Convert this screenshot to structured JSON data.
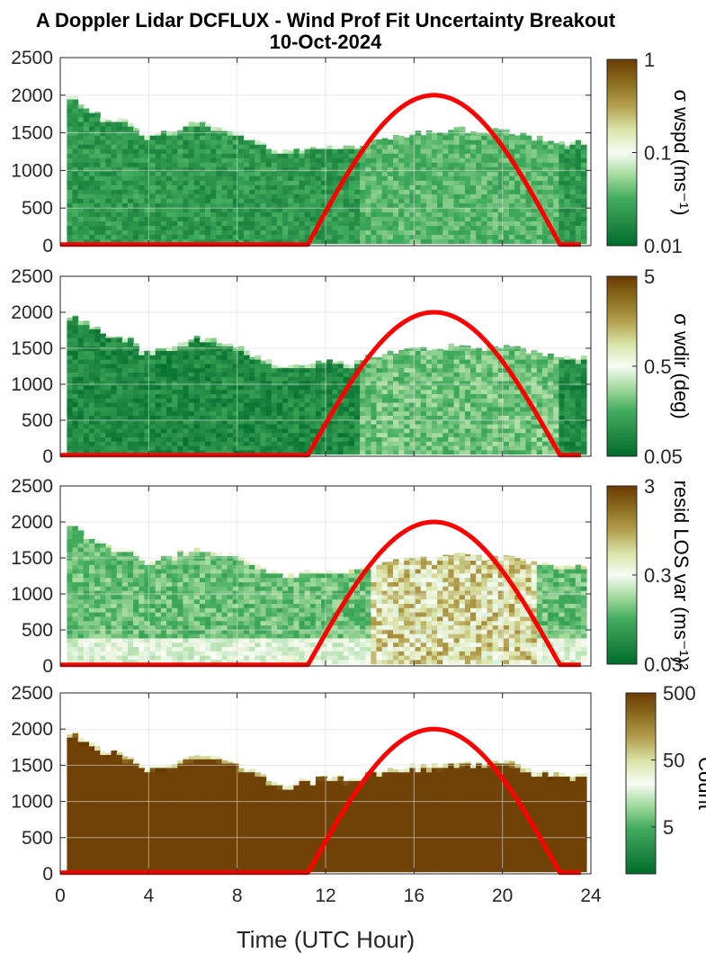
{
  "title": {
    "line1": "A Doppler Lidar DCFLUX - Wind Prof Fit Uncertainty Breakout",
    "line2": "10-Oct-2024"
  },
  "x_axis_label": "Time (UTC Hour)",
  "colors": {
    "sun_curve": "#ff0000",
    "grid": "#dcdcdc",
    "colormap": [
      "#006d2c",
      "#238b45",
      "#41ab5d",
      "#a1d99b",
      "#f7fcf5",
      "#d9e3a6",
      "#b3a04f",
      "#8c6d1f",
      "#6b3a03"
    ]
  },
  "chart_data": [
    {
      "type": "heatmap",
      "panel": 1,
      "x_ticks": [
        "0",
        "4",
        "8",
        "12",
        "16",
        "20",
        "24"
      ],
      "xlim": [
        0,
        24
      ],
      "y_ticks": [
        "0",
        "500",
        "1000",
        "1500",
        "2000",
        "2500"
      ],
      "ylim": [
        0,
        2500
      ],
      "grid": true,
      "colorbar": {
        "label": "σ wspd (ms⁻¹)",
        "ticks": [
          "0.01",
          "0.1",
          "1"
        ],
        "range": [
          0.01,
          1
        ],
        "scale": "log"
      },
      "top_height": [
        [
          0,
          1900
        ],
        [
          0.5,
          2000
        ],
        [
          1,
          1850
        ],
        [
          2,
          1700
        ],
        [
          3,
          1650
        ],
        [
          3.5,
          1500
        ],
        [
          4,
          1450
        ],
        [
          5,
          1550
        ],
        [
          6,
          1650
        ],
        [
          7,
          1600
        ],
        [
          8,
          1500
        ],
        [
          9,
          1350
        ],
        [
          10,
          1250
        ],
        [
          11,
          1300
        ],
        [
          12,
          1350
        ],
        [
          13,
          1300
        ],
        [
          14,
          1400
        ],
        [
          15,
          1450
        ],
        [
          16,
          1500
        ],
        [
          17,
          1500
        ],
        [
          18,
          1550
        ],
        [
          19,
          1500
        ],
        [
          20,
          1550
        ],
        [
          21,
          1450
        ],
        [
          22,
          1400
        ],
        [
          23,
          1350
        ],
        [
          23.5,
          1400
        ]
      ],
      "field_level": 0.18,
      "sun_curve": {
        "rise_hour": 11.2,
        "peak_hour": 17.0,
        "set_hour": 22.6,
        "peak_value": 2000,
        "base_value": 15
      }
    },
    {
      "type": "heatmap",
      "panel": 2,
      "x_ticks": [
        "0",
        "4",
        "8",
        "12",
        "16",
        "20",
        "24"
      ],
      "xlim": [
        0,
        24
      ],
      "y_ticks": [
        "0",
        "500",
        "1000",
        "1500",
        "2000",
        "2500"
      ],
      "ylim": [
        0,
        2500
      ],
      "grid": true,
      "colorbar": {
        "label": "σ wdir (deg)",
        "ticks": [
          "0.05",
          "0.5",
          "5"
        ],
        "range": [
          0.05,
          5
        ],
        "scale": "log"
      },
      "top_height": [
        [
          0,
          1900
        ],
        [
          0.5,
          2000
        ],
        [
          1,
          1850
        ],
        [
          2,
          1700
        ],
        [
          3,
          1650
        ],
        [
          3.5,
          1500
        ],
        [
          4,
          1450
        ],
        [
          5,
          1550
        ],
        [
          6,
          1650
        ],
        [
          7,
          1600
        ],
        [
          8,
          1500
        ],
        [
          9,
          1350
        ],
        [
          10,
          1250
        ],
        [
          11,
          1300
        ],
        [
          12,
          1350
        ],
        [
          13,
          1300
        ],
        [
          14,
          1400
        ],
        [
          15,
          1450
        ],
        [
          16,
          1500
        ],
        [
          17,
          1500
        ],
        [
          18,
          1550
        ],
        [
          19,
          1500
        ],
        [
          20,
          1550
        ],
        [
          21,
          1450
        ],
        [
          22,
          1400
        ],
        [
          23,
          1350
        ],
        [
          23.5,
          1400
        ]
      ],
      "field_level": 0.12,
      "sun_curve": {
        "rise_hour": 11.2,
        "peak_hour": 17.0,
        "set_hour": 22.6,
        "peak_value": 2000,
        "base_value": 15
      }
    },
    {
      "type": "heatmap",
      "panel": 3,
      "x_ticks": [
        "0",
        "4",
        "8",
        "12",
        "16",
        "20",
        "24"
      ],
      "xlim": [
        0,
        24
      ],
      "y_ticks": [
        "0",
        "500",
        "1000",
        "1500",
        "2000",
        "2500"
      ],
      "ylim": [
        0,
        2500
      ],
      "grid": true,
      "colorbar": {
        "label": "resid LOS var (ms⁻¹)²",
        "ticks": [
          "0.03",
          "0.3",
          "3"
        ],
        "range": [
          0.03,
          3
        ],
        "scale": "log"
      },
      "top_height": [
        [
          0,
          1900
        ],
        [
          0.5,
          2000
        ],
        [
          1,
          1850
        ],
        [
          2,
          1700
        ],
        [
          3,
          1650
        ],
        [
          3.5,
          1500
        ],
        [
          4,
          1450
        ],
        [
          5,
          1550
        ],
        [
          6,
          1650
        ],
        [
          7,
          1600
        ],
        [
          8,
          1500
        ],
        [
          9,
          1350
        ],
        [
          10,
          1250
        ],
        [
          11,
          1300
        ],
        [
          12,
          1350
        ],
        [
          13,
          1300
        ],
        [
          14,
          1400
        ],
        [
          15,
          1450
        ],
        [
          16,
          1500
        ],
        [
          17,
          1500
        ],
        [
          18,
          1550
        ],
        [
          19,
          1500
        ],
        [
          20,
          1550
        ],
        [
          21,
          1450
        ],
        [
          22,
          1400
        ],
        [
          23,
          1350
        ],
        [
          23.5,
          1400
        ]
      ],
      "field_level": 0.3,
      "sun_curve": {
        "rise_hour": 11.2,
        "peak_hour": 17.0,
        "set_hour": 22.6,
        "peak_value": 2000,
        "base_value": 15
      }
    },
    {
      "type": "heatmap",
      "panel": 4,
      "x_ticks": [
        "0",
        "4",
        "8",
        "12",
        "16",
        "20",
        "24"
      ],
      "xlim": [
        0,
        24
      ],
      "y_ticks": [
        "0",
        "500",
        "1000",
        "1500",
        "2000",
        "2500"
      ],
      "ylim": [
        0,
        2500
      ],
      "grid": true,
      "colorbar": {
        "label": "Count",
        "ticks": [
          "5",
          "50",
          "500"
        ],
        "range": [
          1,
          500
        ],
        "scale": "log"
      },
      "top_height": [
        [
          0,
          1900
        ],
        [
          0.5,
          2000
        ],
        [
          1,
          1850
        ],
        [
          2,
          1700
        ],
        [
          3,
          1650
        ],
        [
          3.5,
          1500
        ],
        [
          4,
          1450
        ],
        [
          5,
          1550
        ],
        [
          6,
          1650
        ],
        [
          7,
          1600
        ],
        [
          8,
          1500
        ],
        [
          9,
          1350
        ],
        [
          10,
          1250
        ],
        [
          11,
          1300
        ],
        [
          12,
          1350
        ],
        [
          13,
          1300
        ],
        [
          14,
          1400
        ],
        [
          15,
          1450
        ],
        [
          16,
          1500
        ],
        [
          17,
          1500
        ],
        [
          18,
          1550
        ],
        [
          19,
          1500
        ],
        [
          20,
          1550
        ],
        [
          21,
          1450
        ],
        [
          22,
          1400
        ],
        [
          23,
          1350
        ],
        [
          23.5,
          1400
        ]
      ],
      "field_level": 0.97,
      "sun_curve": {
        "rise_hour": 11.2,
        "peak_hour": 17.0,
        "set_hour": 22.6,
        "peak_value": 2000,
        "base_value": 15
      }
    }
  ]
}
